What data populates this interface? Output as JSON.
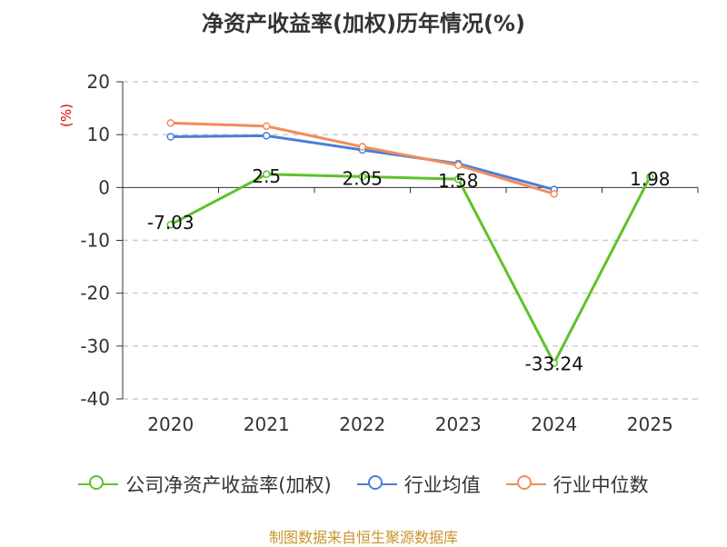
{
  "chart_data": {
    "type": "line",
    "title": "净资产收益率(加权)历年情况(%)",
    "ylabel": "(%)",
    "categories": [
      "2020",
      "2021",
      "2022",
      "2023",
      "2024",
      "2025"
    ],
    "ylim": [
      -40,
      20
    ],
    "yticks": [
      20,
      10,
      0,
      -10,
      -20,
      -30,
      -40
    ],
    "grid": true,
    "legend_position": "bottom",
    "series": [
      {
        "name": "公司净资产收益率(加权)",
        "color": "#5dc22a",
        "values": [
          -7.03,
          2.5,
          2.05,
          1.58,
          -33.24,
          1.98
        ],
        "labels": [
          "-7.03",
          "2.5",
          "2.05",
          "1.58",
          "-33.24",
          "1.98"
        ]
      },
      {
        "name": "行业均值",
        "color": "#4a7fd6",
        "values": [
          9.6,
          9.8,
          7.1,
          4.5,
          -0.4,
          null
        ]
      },
      {
        "name": "行业中位数",
        "color": "#f28c5c",
        "values": [
          12.2,
          11.6,
          7.7,
          4.2,
          -1.2,
          null
        ]
      }
    ]
  },
  "source": "制图数据来自恒生聚源数据库"
}
